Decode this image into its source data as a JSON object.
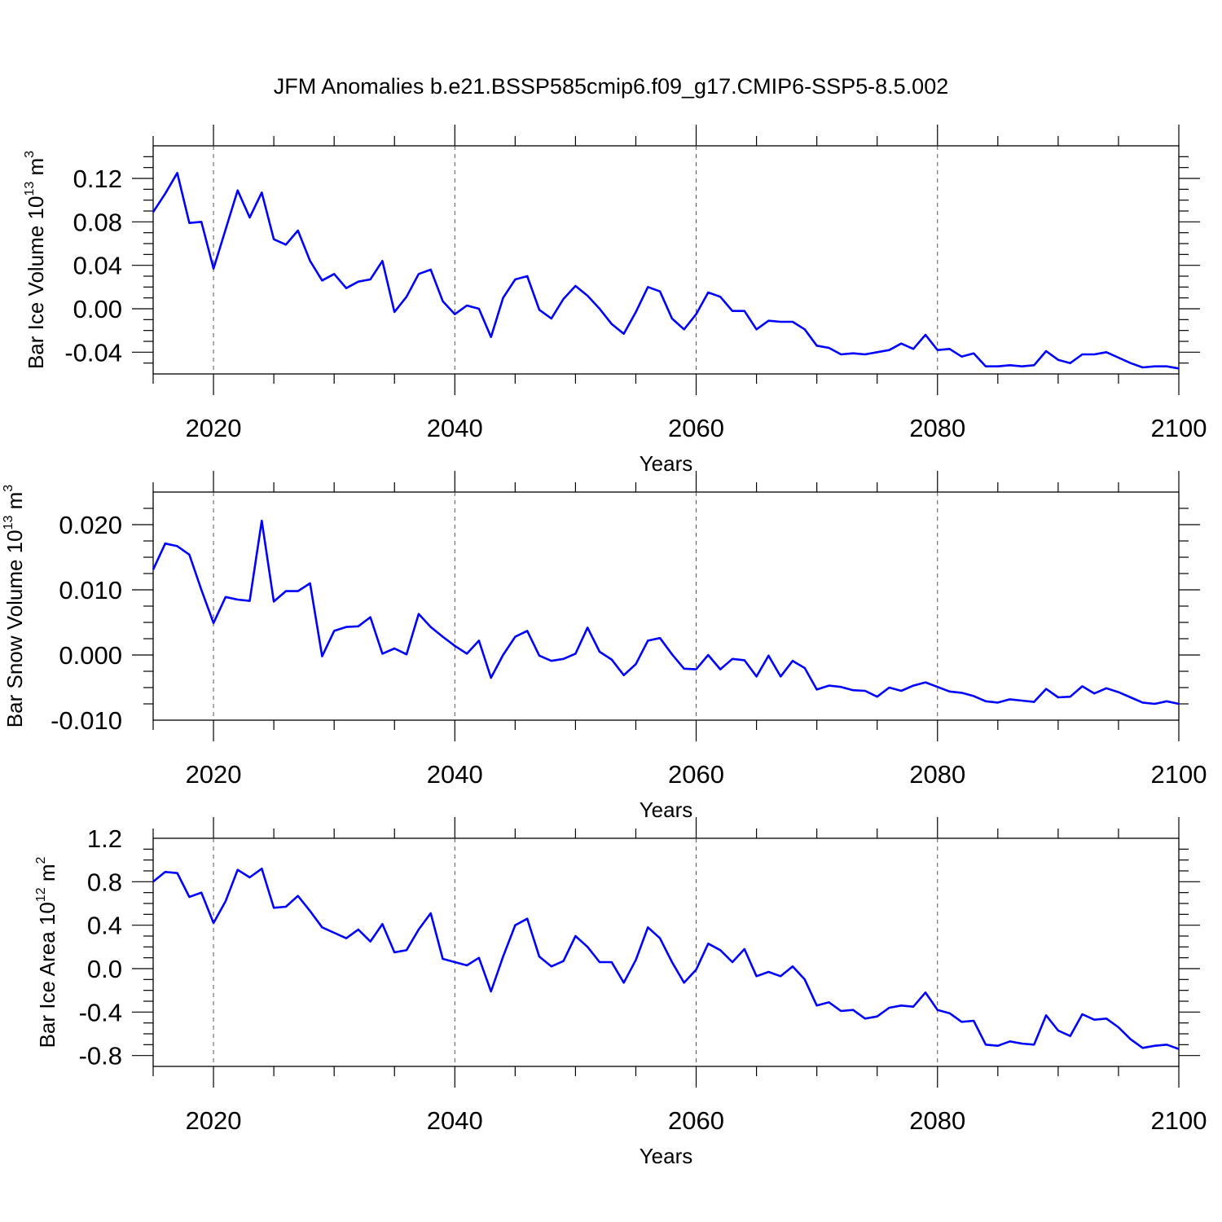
{
  "title": "JFM Anomalies b.e21.BSSP585cmip6.f09_g17.CMIP6-SSP5-8.5.002",
  "line_color": "#0000ff",
  "chart_data": [
    {
      "type": "line",
      "xlabel": "Years",
      "ylabel_main": "Bar Ice Volume 10",
      "ylabel_exp": "13",
      "ylabel_unit": "m",
      "ylabel_unit_exp": "3",
      "xlim": [
        2015,
        2100
      ],
      "ylim": [
        -0.06,
        0.15
      ],
      "xticks": [
        2020,
        2040,
        2060,
        2080,
        2100
      ],
      "yticks": [
        -0.04,
        0,
        0.04,
        0.08,
        0.12
      ],
      "ytick_labels": [
        "-0.04",
        "0.00",
        "0.04",
        "0.08",
        "0.12"
      ],
      "grid": "x-dashed",
      "x": [
        2015,
        2016,
        2017,
        2018,
        2019,
        2020,
        2021,
        2022,
        2023,
        2024,
        2025,
        2026,
        2027,
        2028,
        2029,
        2030,
        2031,
        2032,
        2033,
        2034,
        2035,
        2036,
        2037,
        2038,
        2039,
        2040,
        2041,
        2042,
        2043,
        2044,
        2045,
        2046,
        2047,
        2048,
        2049,
        2050,
        2051,
        2052,
        2053,
        2054,
        2055,
        2056,
        2057,
        2058,
        2059,
        2060,
        2061,
        2062,
        2063,
        2064,
        2065,
        2066,
        2067,
        2068,
        2069,
        2070,
        2071,
        2072,
        2073,
        2074,
        2075,
        2076,
        2077,
        2078,
        2079,
        2080,
        2081,
        2082,
        2083,
        2084,
        2085,
        2086,
        2087,
        2088,
        2089,
        2090,
        2091,
        2092,
        2093,
        2094,
        2095,
        2096,
        2097,
        2098,
        2099,
        2100
      ],
      "values": [
        0.089,
        0.106,
        0.125,
        0.079,
        0.08,
        0.037,
        0.073,
        0.109,
        0.084,
        0.107,
        0.064,
        0.059,
        0.072,
        0.044,
        0.026,
        0.032,
        0.019,
        0.025,
        0.027,
        0.044,
        -0.003,
        0.011,
        0.032,
        0.036,
        0.007,
        -0.005,
        0.003,
        0.0,
        -0.026,
        0.01,
        0.027,
        0.03,
        -0.001,
        -0.009,
        0.009,
        0.021,
        0.012,
        0.0,
        -0.014,
        -0.023,
        -0.003,
        0.02,
        0.016,
        -0.009,
        -0.019,
        -0.005,
        0.015,
        0.011,
        -0.002,
        -0.002,
        -0.019,
        -0.011,
        -0.012,
        -0.012,
        -0.019,
        -0.034,
        -0.036,
        -0.042,
        -0.041,
        -0.042,
        -0.04,
        -0.038,
        -0.032,
        -0.037,
        -0.024,
        -0.038,
        -0.037,
        -0.044,
        -0.041,
        -0.053,
        -0.053,
        -0.052,
        -0.053,
        -0.052,
        -0.039,
        -0.047,
        -0.05,
        -0.042,
        -0.042,
        -0.04,
        -0.045,
        -0.05,
        -0.054,
        -0.053,
        -0.053,
        -0.055
      ]
    },
    {
      "type": "line",
      "xlabel": "Years",
      "ylabel_main": "Bar Snow Volume 10",
      "ylabel_exp": "13",
      "ylabel_unit": "m",
      "ylabel_unit_exp": "3",
      "xlim": [
        2015,
        2100
      ],
      "ylim": [
        -0.01,
        0.025
      ],
      "xticks": [
        2020,
        2040,
        2060,
        2080,
        2100
      ],
      "yticks": [
        -0.01,
        0,
        0.01,
        0.02
      ],
      "ytick_labels": [
        "-0.010",
        "0.000",
        "0.010",
        "0.020"
      ],
      "grid": "x-dashed",
      "x": [
        2015,
        2016,
        2017,
        2018,
        2019,
        2020,
        2021,
        2022,
        2023,
        2024,
        2025,
        2026,
        2027,
        2028,
        2029,
        2030,
        2031,
        2032,
        2033,
        2034,
        2035,
        2036,
        2037,
        2038,
        2039,
        2040,
        2041,
        2042,
        2043,
        2044,
        2045,
        2046,
        2047,
        2048,
        2049,
        2050,
        2051,
        2052,
        2053,
        2054,
        2055,
        2056,
        2057,
        2058,
        2059,
        2060,
        2061,
        2062,
        2063,
        2064,
        2065,
        2066,
        2067,
        2068,
        2069,
        2070,
        2071,
        2072,
        2073,
        2074,
        2075,
        2076,
        2077,
        2078,
        2079,
        2080,
        2081,
        2082,
        2083,
        2084,
        2085,
        2086,
        2087,
        2088,
        2089,
        2090,
        2091,
        2092,
        2093,
        2094,
        2095,
        2096,
        2097,
        2098,
        2099,
        2100
      ],
      "values": [
        0.0131,
        0.0171,
        0.0167,
        0.0154,
        0.01,
        0.0049,
        0.0089,
        0.0085,
        0.0083,
        0.0206,
        0.0082,
        0.0098,
        0.0098,
        0.011,
        -0.0002,
        0.0037,
        0.0043,
        0.0044,
        0.0058,
        0.0002,
        0.001,
        0.0001,
        0.0063,
        0.0043,
        0.0028,
        0.0014,
        0.0002,
        0.0022,
        -0.0035,
        0.0,
        0.0028,
        0.0037,
        -0.0001,
        -0.0009,
        -0.0006,
        0.0002,
        0.0042,
        0.0005,
        -0.0007,
        -0.0031,
        -0.0014,
        0.0022,
        0.0026,
        0.0001,
        -0.0021,
        -0.0022,
        0.0,
        -0.0022,
        -0.0006,
        -0.0008,
        -0.0033,
        -0.0001,
        -0.0033,
        -0.0009,
        -0.002,
        -0.0053,
        -0.0047,
        -0.0049,
        -0.0054,
        -0.0055,
        -0.0064,
        -0.005,
        -0.0055,
        -0.0047,
        -0.0042,
        -0.0049,
        -0.0056,
        -0.0058,
        -0.0063,
        -0.0071,
        -0.0073,
        -0.0068,
        -0.007,
        -0.0072,
        -0.0052,
        -0.0065,
        -0.0064,
        -0.0048,
        -0.0059,
        -0.0051,
        -0.0057,
        -0.0065,
        -0.0073,
        -0.0075,
        -0.0071,
        -0.0075
      ]
    },
    {
      "type": "line",
      "xlabel": "Years",
      "ylabel_main": "Bar Ice Area 10",
      "ylabel_exp": "12",
      "ylabel_unit": "m",
      "ylabel_unit_exp": "2",
      "xlim": [
        2015,
        2100
      ],
      "ylim": [
        -0.9,
        1.2
      ],
      "xticks": [
        2020,
        2040,
        2060,
        2080,
        2100
      ],
      "yticks": [
        -0.8,
        -0.4,
        0,
        0.4,
        0.8,
        1.2
      ],
      "ytick_labels": [
        "-0.8",
        "-0.4",
        "0.0",
        "0.4",
        "0.8",
        "1.2"
      ],
      "grid": "x-dashed",
      "x": [
        2015,
        2016,
        2017,
        2018,
        2019,
        2020,
        2021,
        2022,
        2023,
        2024,
        2025,
        2026,
        2027,
        2028,
        2029,
        2030,
        2031,
        2032,
        2033,
        2034,
        2035,
        2036,
        2037,
        2038,
        2039,
        2040,
        2041,
        2042,
        2043,
        2044,
        2045,
        2046,
        2047,
        2048,
        2049,
        2050,
        2051,
        2052,
        2053,
        2054,
        2055,
        2056,
        2057,
        2058,
        2059,
        2060,
        2061,
        2062,
        2063,
        2064,
        2065,
        2066,
        2067,
        2068,
        2069,
        2070,
        2071,
        2072,
        2073,
        2074,
        2075,
        2076,
        2077,
        2078,
        2079,
        2080,
        2081,
        2082,
        2083,
        2084,
        2085,
        2086,
        2087,
        2088,
        2089,
        2090,
        2091,
        2092,
        2093,
        2094,
        2095,
        2096,
        2097,
        2098,
        2099,
        2100
      ],
      "values": [
        0.8,
        0.89,
        0.88,
        0.66,
        0.7,
        0.42,
        0.62,
        0.91,
        0.84,
        0.92,
        0.56,
        0.57,
        0.67,
        0.53,
        0.38,
        0.33,
        0.28,
        0.36,
        0.25,
        0.41,
        0.15,
        0.17,
        0.36,
        0.51,
        0.09,
        0.06,
        0.03,
        0.1,
        -0.21,
        0.11,
        0.4,
        0.46,
        0.11,
        0.02,
        0.07,
        0.3,
        0.2,
        0.06,
        0.06,
        -0.13,
        0.08,
        0.38,
        0.28,
        0.06,
        -0.13,
        -0.01,
        0.23,
        0.17,
        0.06,
        0.18,
        -0.07,
        -0.03,
        -0.07,
        0.02,
        -0.1,
        -0.34,
        -0.31,
        -0.39,
        -0.38,
        -0.46,
        -0.44,
        -0.36,
        -0.34,
        -0.35,
        -0.22,
        -0.38,
        -0.41,
        -0.49,
        -0.48,
        -0.7,
        -0.71,
        -0.67,
        -0.69,
        -0.7,
        -0.43,
        -0.57,
        -0.62,
        -0.42,
        -0.47,
        -0.46,
        -0.54,
        -0.65,
        -0.73,
        -0.71,
        -0.7,
        -0.74
      ]
    }
  ]
}
